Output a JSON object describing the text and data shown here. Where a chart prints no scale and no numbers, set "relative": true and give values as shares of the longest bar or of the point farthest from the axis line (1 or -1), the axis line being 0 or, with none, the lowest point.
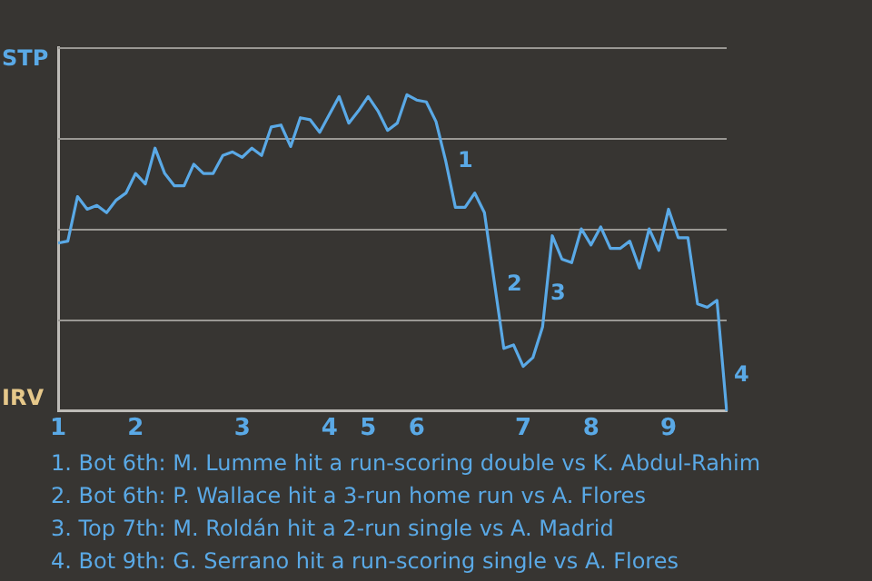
{
  "chart_data": {
    "type": "line",
    "relative": true,
    "grid": "y",
    "marker": "none",
    "line_style": "solid",
    "categories": [
      "1",
      null,
      null,
      null,
      null,
      null,
      null,
      null,
      "2",
      null,
      null,
      null,
      null,
      null,
      null,
      null,
      null,
      null,
      null,
      "3",
      null,
      null,
      null,
      null,
      null,
      null,
      null,
      null,
      "4",
      null,
      null,
      null,
      "5",
      null,
      null,
      null,
      null,
      "6",
      null,
      null,
      null,
      null,
      null,
      null,
      null,
      null,
      null,
      null,
      "7",
      null,
      null,
      null,
      null,
      null,
      null,
      "8",
      null,
      null,
      null,
      null,
      null,
      null,
      null,
      "9",
      null,
      null,
      null,
      null,
      null,
      null
    ],
    "series": [
      {
        "color": "#5aa9e6",
        "values": [
          0.531,
          0.537,
          0.678,
          0.638,
          0.65,
          0.627,
          0.667,
          0.689,
          0.751,
          0.718,
          0.831,
          0.751,
          0.712,
          0.712,
          0.78,
          0.751,
          0.751,
          0.808,
          0.819,
          0.802,
          0.831,
          0.808,
          0.898,
          0.904,
          0.836,
          0.927,
          0.921,
          0.881,
          0.938,
          0.994,
          0.91,
          0.949,
          0.994,
          0.949,
          0.887,
          0.91,
          1,
          0.983,
          0.977,
          0.915,
          0.791,
          0.644,
          0.644,
          0.689,
          0.627,
          0.412,
          0.198,
          0.209,
          0.141,
          0.169,
          0.266,
          0.554,
          0.48,
          0.469,
          0.576,
          0.525,
          0.582,
          0.514,
          0.514,
          0.537,
          0.452,
          0.576,
          0.508,
          0.638,
          0.548,
          0.548,
          0.339,
          0.328,
          0.35,
          0
        ]
      }
    ],
    "annotations": [
      "STP",
      "IRV",
      "1",
      "2",
      "3",
      "4",
      "1. Bot 6th: M. Lumme hit a run-scoring double vs K. Abdul-Rahim",
      "2. Bot 6th: P. Wallace hit a 3-run home run vs A. Flores",
      "3. Top 7th: M. Roldán hit a 2-run single vs A. Madrid",
      "4. Bot 9th: G. Serrano hit a run-scoring single vs A. Flores"
    ]
  }
}
